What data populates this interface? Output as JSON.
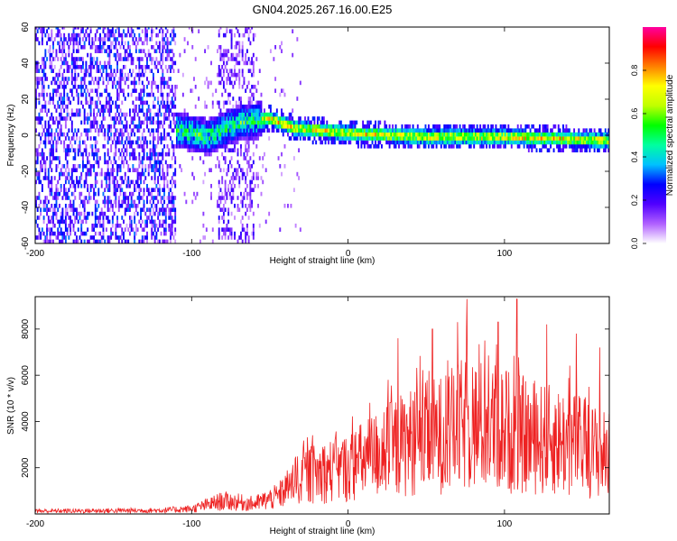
{
  "title": "GN04.2025.267.16.00.E25",
  "chart_data": [
    {
      "type": "heatmap",
      "name": "spectrogram",
      "xlabel": "Height of straight line (km)",
      "ylabel": "Frequency (Hz)",
      "xlim": [
        -200,
        167
      ],
      "ylim": [
        -60,
        60
      ],
      "xticks": [
        -200,
        -100,
        0,
        100
      ],
      "yticks": [
        -60,
        -40,
        -20,
        0,
        20,
        40,
        60
      ],
      "colorbar": {
        "label": "Normalized spectral amplitude",
        "ticks": [
          "0.0",
          "0.2",
          "0.4",
          "0.6",
          "0.8"
        ],
        "tick_values": [
          0.0,
          0.2,
          0.4,
          0.6,
          0.8
        ],
        "range": [
          0.0,
          1.0
        ],
        "colors": [
          "#ffffff",
          "#b060ff",
          "#5000ff",
          "#0000ff",
          "#00c0ff",
          "#00ffa0",
          "#00ff00",
          "#c0ff00",
          "#ffff00",
          "#ff8000",
          "#ff0000",
          "#ff00a0"
        ]
      },
      "trace_frequency": [
        {
          "x": -110,
          "f": 2
        },
        {
          "x": -90,
          "f": -2
        },
        {
          "x": -70,
          "f": 6
        },
        {
          "x": -50,
          "f": 8
        },
        {
          "x": -35,
          "f": 3
        },
        {
          "x": 0,
          "f": 0
        },
        {
          "x": 50,
          "f": -2
        },
        {
          "x": 100,
          "f": -2
        },
        {
          "x": 167,
          "f": -4
        }
      ]
    },
    {
      "type": "line",
      "name": "snr",
      "xlabel": "Height of straight line (km)",
      "ylabel": "SNR (10 * v/v)",
      "xlim": [
        -200,
        167
      ],
      "ylim": [
        0,
        9400
      ],
      "xticks": [
        -200,
        -100,
        0,
        100
      ],
      "yticks": [
        2000,
        4000,
        6000,
        8000
      ],
      "color": "#ee2222",
      "envelope": [
        {
          "x": -200,
          "y": 200
        },
        {
          "x": -120,
          "y": 250
        },
        {
          "x": -100,
          "y": 350
        },
        {
          "x": -80,
          "y": 900
        },
        {
          "x": -60,
          "y": 700
        },
        {
          "x": -45,
          "y": 1200
        },
        {
          "x": -30,
          "y": 2600
        },
        {
          "x": -10,
          "y": 3000
        },
        {
          "x": 0,
          "y": 3200
        },
        {
          "x": 20,
          "y": 4200
        },
        {
          "x": 40,
          "y": 5000
        },
        {
          "x": 60,
          "y": 5500
        },
        {
          "x": 75,
          "y": 6200
        },
        {
          "x": 95,
          "y": 6000
        },
        {
          "x": 120,
          "y": 5200
        },
        {
          "x": 140,
          "y": 5000
        },
        {
          "x": 167,
          "y": 4000
        }
      ],
      "peaks": [
        {
          "x": 32,
          "y": 7600
        },
        {
          "x": 54,
          "y": 8000
        },
        {
          "x": 70,
          "y": 8300
        },
        {
          "x": 76,
          "y": 9300
        },
        {
          "x": 96,
          "y": 8300
        },
        {
          "x": 108,
          "y": 9300
        },
        {
          "x": 127,
          "y": 8200
        },
        {
          "x": 146,
          "y": 7800
        },
        {
          "x": 161,
          "y": 7200
        }
      ]
    }
  ]
}
